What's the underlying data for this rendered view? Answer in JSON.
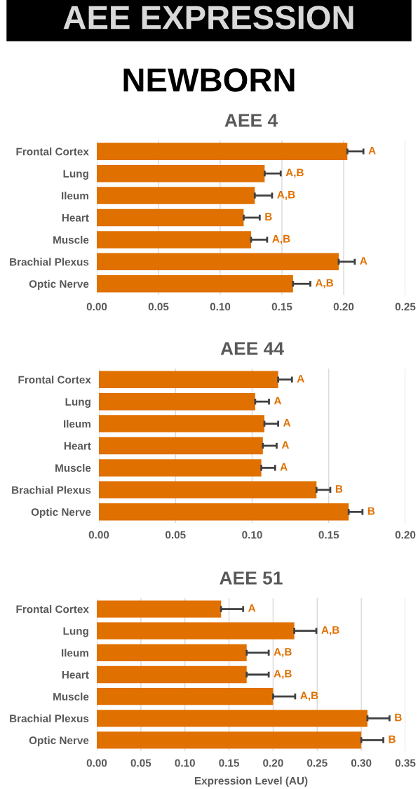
{
  "chart_data": [
    {
      "type": "bar",
      "orientation": "horizontal",
      "title": "AEE 4",
      "categories": [
        "Frontal Cortex",
        "Lung",
        "Ileum",
        "Heart",
        "Muscle",
        "Brachial Plexus",
        "Optic Nerve"
      ],
      "values": [
        0.203,
        0.136,
        0.128,
        0.119,
        0.125,
        0.196,
        0.159
      ],
      "errors": [
        [
          0.203,
          0.216
        ],
        [
          0.136,
          0.149
        ],
        [
          0.128,
          0.142
        ],
        [
          0.119,
          0.132
        ],
        [
          0.125,
          0.138
        ],
        [
          0.196,
          0.209
        ],
        [
          0.159,
          0.173
        ]
      ],
      "color": "#e07000",
      "xlim": [
        0,
        0.25
      ],
      "xticks": [
        {
          "value": 0,
          "label": "0.00"
        },
        {
          "value": 0.05,
          "label": "0.05"
        },
        {
          "value": 0.1,
          "label": "0.10"
        },
        {
          "value": 0.15,
          "label": "0.15"
        },
        {
          "value": 0.2,
          "label": "0.20"
        },
        {
          "value": 0.25,
          "label": "0.25"
        }
      ],
      "grid": "x",
      "annotations": [
        "AEE EXPRESSION",
        "NEWBORN",
        "A",
        "A,B",
        "A,B",
        "B",
        "A,B",
        "A",
        "A,B"
      ]
    },
    {
      "type": "bar",
      "orientation": "horizontal",
      "title": "AEE 44",
      "categories": [
        "Frontal Cortex",
        "Lung",
        "Ileum",
        "Heart",
        "Muscle",
        "Brachial Plexus",
        "Optic Nerve"
      ],
      "values": [
        0.117,
        0.102,
        0.108,
        0.107,
        0.106,
        0.142,
        0.163
      ],
      "errors": [
        [
          0.117,
          0.126
        ],
        [
          0.102,
          0.111
        ],
        [
          0.108,
          0.117
        ],
        [
          0.107,
          0.116
        ],
        [
          0.106,
          0.115
        ],
        [
          0.142,
          0.151
        ],
        [
          0.163,
          0.172
        ]
      ],
      "color": "#e07000",
      "xlim": [
        0,
        0.2
      ],
      "xticks": [
        {
          "value": 0,
          "label": "0.00"
        },
        {
          "value": 0.05,
          "label": "0.05"
        },
        {
          "value": 0.1,
          "label": "0.10"
        },
        {
          "value": 0.15,
          "label": "0.15"
        },
        {
          "value": 0.2,
          "label": "0.20"
        }
      ],
      "grid": "x",
      "annotations": [
        "A",
        "A",
        "A",
        "A",
        "A",
        "B",
        "B"
      ]
    },
    {
      "type": "bar",
      "orientation": "horizontal",
      "title": "AEE 51",
      "xlabel": "Expression Level (AU)",
      "categories": [
        "Frontal Cortex",
        "Lung",
        "Ileum",
        "Heart",
        "Muscle",
        "Brachial Plexus",
        "Optic Nerve"
      ],
      "values": [
        0.141,
        0.224,
        0.17,
        0.17,
        0.2,
        0.307,
        0.3
      ],
      "errors": [
        [
          0.141,
          0.166
        ],
        [
          0.224,
          0.249
        ],
        [
          0.17,
          0.195
        ],
        [
          0.17,
          0.195
        ],
        [
          0.2,
          0.225
        ],
        [
          0.307,
          0.332
        ],
        [
          0.3,
          0.325
        ]
      ],
      "color": "#e07000",
      "xlim": [
        0,
        0.35
      ],
      "xticks": [
        {
          "value": 0,
          "label": "0.00"
        },
        {
          "value": 0.05,
          "label": "0.05"
        },
        {
          "value": 0.1,
          "label": "0.10"
        },
        {
          "value": 0.15,
          "label": "0.15"
        },
        {
          "value": 0.2,
          "label": "0.20"
        },
        {
          "value": 0.25,
          "label": "0.25"
        },
        {
          "value": 0.3,
          "label": "0.30"
        },
        {
          "value": 0.35,
          "label": "0.35"
        }
      ],
      "grid": "x",
      "annotations": [
        "A",
        "A,B",
        "A,B",
        "A,B",
        "A,B",
        "B",
        "B"
      ]
    }
  ]
}
